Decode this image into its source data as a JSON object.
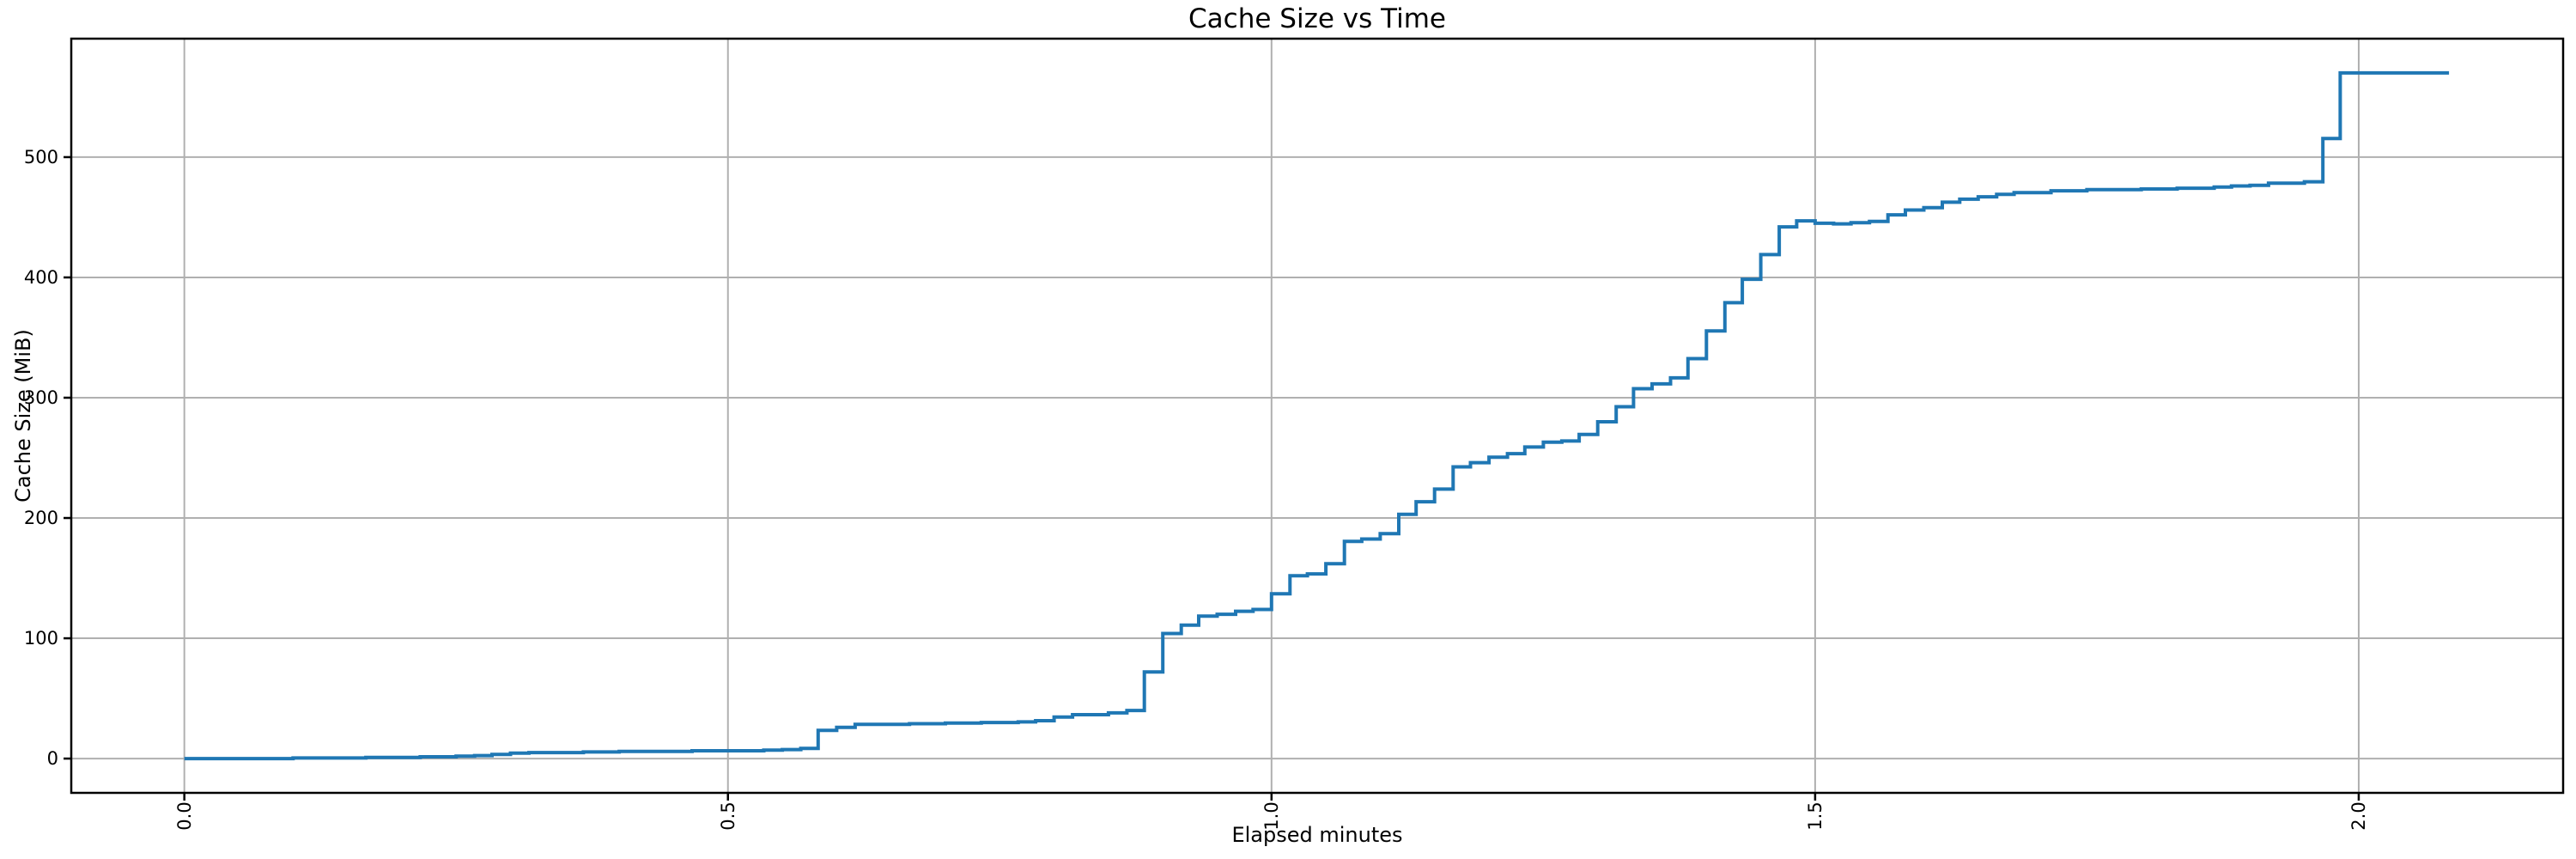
{
  "chart_data": {
    "type": "line",
    "title": "Cache Size vs Time",
    "xlabel": "Elapsed minutes",
    "ylabel": "Cache Size (MiB)",
    "line_color": "#1f77b4",
    "grid_color": "#b0b0b0",
    "spine_color": "#000000",
    "grid": true,
    "legend": "none",
    "draw_style": "steps-post",
    "x_tick_rotation_deg": 90,
    "xlim": [
      -0.104,
      2.188
    ],
    "ylim": [
      -28.5,
      598.5
    ],
    "x_ticks": [
      0.0,
      0.5,
      1.0,
      1.5,
      2.0
    ],
    "x_tick_labels": [
      "0.0",
      "0.5",
      "1.0",
      "1.5",
      "2.0"
    ],
    "y_ticks": [
      0,
      100,
      200,
      300,
      400,
      500
    ],
    "y_tick_labels": [
      "0",
      "100",
      "200",
      "300",
      "400",
      "500"
    ],
    "points": [
      [
        0.0,
        0
      ],
      [
        0.1,
        0.5
      ],
      [
        0.167,
        1
      ],
      [
        0.217,
        1.5
      ],
      [
        0.25,
        2
      ],
      [
        0.267,
        2.5
      ],
      [
        0.283,
        3.5
      ],
      [
        0.3,
        4.5
      ],
      [
        0.317,
        5
      ],
      [
        0.367,
        5.5
      ],
      [
        0.4,
        6
      ],
      [
        0.467,
        6.5
      ],
      [
        0.533,
        7
      ],
      [
        0.55,
        7.5
      ],
      [
        0.567,
        8.5
      ],
      [
        0.583,
        23.5
      ],
      [
        0.6,
        26
      ],
      [
        0.617,
        28.5
      ],
      [
        0.667,
        29
      ],
      [
        0.7,
        29.5
      ],
      [
        0.733,
        30
      ],
      [
        0.767,
        30.5
      ],
      [
        0.783,
        31.5
      ],
      [
        0.8,
        34.5
      ],
      [
        0.817,
        36.5
      ],
      [
        0.85,
        38
      ],
      [
        0.867,
        40
      ],
      [
        0.883,
        72
      ],
      [
        0.9,
        104
      ],
      [
        0.917,
        111
      ],
      [
        0.933,
        118.5
      ],
      [
        0.95,
        120
      ],
      [
        0.967,
        122.5
      ],
      [
        0.983,
        124
      ],
      [
        1.0,
        137
      ],
      [
        1.017,
        152
      ],
      [
        1.033,
        153.5
      ],
      [
        1.05,
        162
      ],
      [
        1.067,
        180.5
      ],
      [
        1.083,
        182.5
      ],
      [
        1.1,
        187
      ],
      [
        1.117,
        203
      ],
      [
        1.133,
        213.5
      ],
      [
        1.15,
        224
      ],
      [
        1.167,
        242.5
      ],
      [
        1.183,
        246
      ],
      [
        1.2,
        250.5
      ],
      [
        1.217,
        253.5
      ],
      [
        1.233,
        259
      ],
      [
        1.25,
        263
      ],
      [
        1.267,
        264
      ],
      [
        1.283,
        269.5
      ],
      [
        1.3,
        280
      ],
      [
        1.317,
        292.5
      ],
      [
        1.333,
        307.5
      ],
      [
        1.35,
        311.5
      ],
      [
        1.367,
        316.5
      ],
      [
        1.383,
        332.5
      ],
      [
        1.4,
        355.5
      ],
      [
        1.417,
        379
      ],
      [
        1.433,
        398.5
      ],
      [
        1.45,
        419
      ],
      [
        1.467,
        442
      ],
      [
        1.483,
        447
      ],
      [
        1.5,
        445
      ],
      [
        1.517,
        444.5
      ],
      [
        1.533,
        445.5
      ],
      [
        1.55,
        446.5
      ],
      [
        1.567,
        452
      ],
      [
        1.583,
        456
      ],
      [
        1.6,
        458
      ],
      [
        1.617,
        462.5
      ],
      [
        1.633,
        465
      ],
      [
        1.65,
        467
      ],
      [
        1.667,
        469
      ],
      [
        1.683,
        470.5
      ],
      [
        1.717,
        472
      ],
      [
        1.75,
        473
      ],
      [
        1.8,
        473.5
      ],
      [
        1.833,
        474.2
      ],
      [
        1.867,
        475.2
      ],
      [
        1.883,
        476
      ],
      [
        1.9,
        476.5
      ],
      [
        1.917,
        478.3
      ],
      [
        1.95,
        479.5
      ],
      [
        1.967,
        515.5
      ],
      [
        1.983,
        570
      ],
      [
        2.083,
        570
      ]
    ]
  }
}
